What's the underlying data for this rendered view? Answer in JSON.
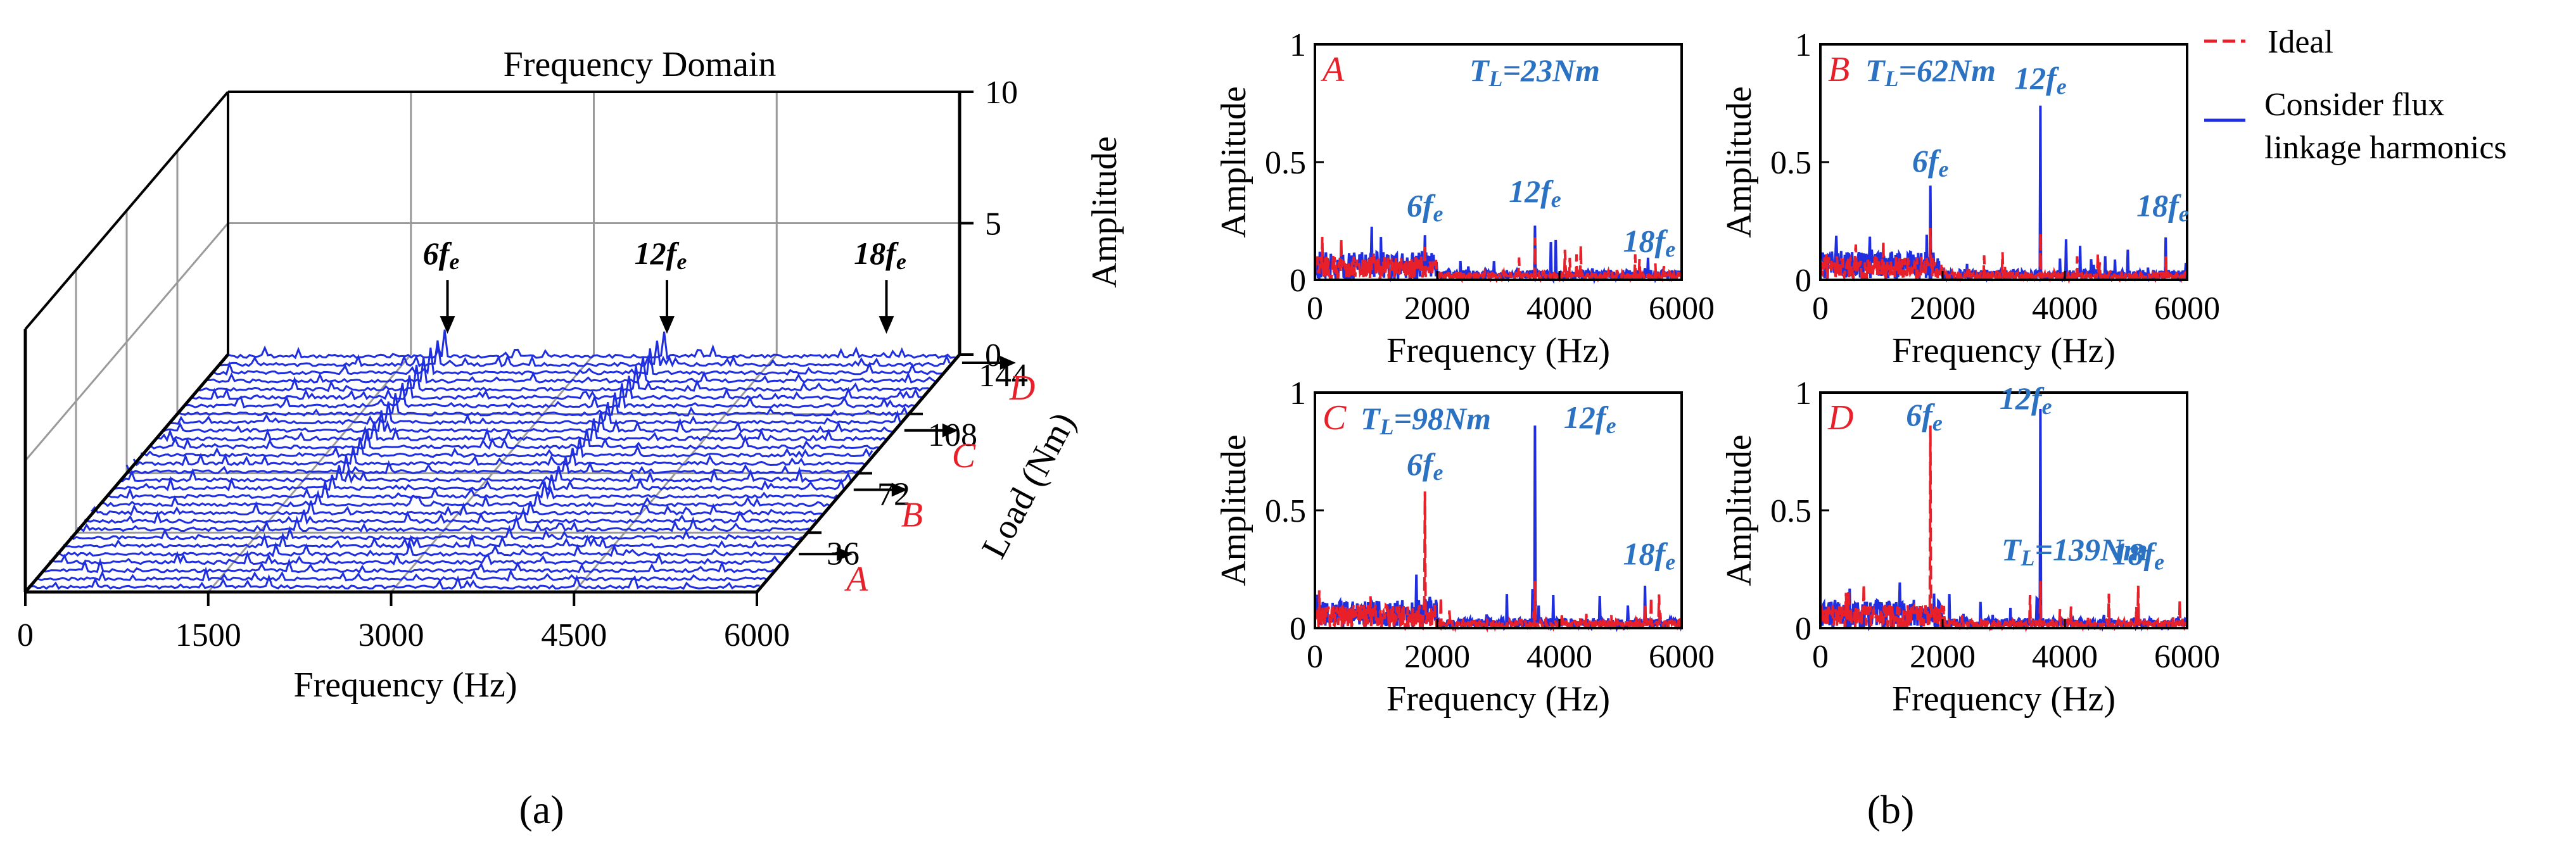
{
  "figure": {
    "caption_a": "(a)",
    "caption_b": "(b)",
    "colors": {
      "ideal": "#e8202a",
      "flux": "#1f2fe0",
      "annotation": "#2b73c2",
      "marker": "#e8202a"
    }
  },
  "chart_data": [
    {
      "type": "line",
      "panel": "a",
      "title": "Frequency Domain",
      "xlabel": "Frequency (Hz)",
      "ylabel": "Load (Nm)",
      "zlabel": "Amplitude",
      "xlim": [
        0,
        6000
      ],
      "ylim": [
        0,
        144
      ],
      "zlim": [
        0,
        10
      ],
      "xticks": [
        "0",
        "1500",
        "3000",
        "4500",
        "6000"
      ],
      "yticks": [
        "36",
        "72",
        "108",
        "144"
      ],
      "zticks": [
        "0",
        "5",
        "10"
      ],
      "load_markers": [
        {
          "label": "A",
          "load": 23
        },
        {
          "label": "B",
          "load": 62
        },
        {
          "label": "C",
          "load": 98
        },
        {
          "label": "D",
          "load": 139
        }
      ],
      "harmonic_labels": [
        {
          "text": "6fe",
          "main": "6f",
          "sub": "e",
          "x": 1800
        },
        {
          "text": "12fe",
          "main": "12f",
          "sub": "e",
          "x": 3600
        },
        {
          "text": "18fe",
          "main": "18f",
          "sub": "e",
          "x": 5400
        }
      ],
      "series_count": 29,
      "series_load_step": 5,
      "harmonic_peak_amplitude": {
        "6fe_at_max_load": 1.0,
        "12fe_at_max_load": 1.0,
        "18fe": 0.15
      },
      "grid": true
    },
    {
      "type": "line",
      "panel": "b",
      "subplots": [
        {
          "id": "A",
          "condition": "TL=23Nm",
          "cond_main": "T",
          "cond_sub": "L",
          "cond_rest": "=23Nm",
          "xlabel": "Frequency (Hz)",
          "ylabel": "Amplitude",
          "xlim": [
            0,
            6000
          ],
          "ylim": [
            0,
            1
          ],
          "xticks": [
            "0",
            "2000",
            "4000",
            "6000"
          ],
          "yticks": [
            "0",
            "0.5",
            "1"
          ],
          "peaks": {
            "ideal": [
              {
                "x": 1800,
                "y": 0.15
              },
              {
                "x": 3600,
                "y": 0.18
              }
            ],
            "flux": [
              {
                "x": 1800,
                "y": 0.19
              },
              {
                "x": 3600,
                "y": 0.23
              },
              {
                "x": 5400,
                "y": 0.05
              }
            ]
          },
          "harmonics": [
            {
              "main": "6f",
              "sub": "e"
            },
            {
              "main": "12f",
              "sub": "e"
            },
            {
              "main": "18f",
              "sub": "e"
            }
          ]
        },
        {
          "id": "B",
          "condition": "TL=62Nm",
          "cond_main": "T",
          "cond_sub": "L",
          "cond_rest": "=62Nm",
          "xlabel": "Frequency (Hz)",
          "ylabel": "Amplitude",
          "xlim": [
            0,
            6000
          ],
          "ylim": [
            0,
            1
          ],
          "xticks": [
            "0",
            "2000",
            "4000",
            "6000"
          ],
          "yticks": [
            "0",
            "0.5",
            "1"
          ],
          "peaks": {
            "ideal": [
              {
                "x": 1800,
                "y": 0.22
              },
              {
                "x": 3600,
                "y": 0.2
              },
              {
                "x": 5650,
                "y": 0.1
              }
            ],
            "flux": [
              {
                "x": 1800,
                "y": 0.4
              },
              {
                "x": 3600,
                "y": 0.74
              },
              {
                "x": 5650,
                "y": 0.18
              }
            ]
          },
          "harmonics": [
            {
              "main": "6f",
              "sub": "e"
            },
            {
              "main": "12f",
              "sub": "e"
            },
            {
              "main": "18f",
              "sub": "e"
            }
          ]
        },
        {
          "id": "C",
          "condition": "TL=98Nm",
          "cond_main": "T",
          "cond_sub": "L",
          "cond_rest": "=98Nm",
          "xlabel": "Frequency (Hz)",
          "ylabel": "Amplitude",
          "xlim": [
            0,
            6000
          ],
          "ylim": [
            0,
            1
          ],
          "xticks": [
            "0",
            "2000",
            "4000",
            "6000"
          ],
          "yticks": [
            "0",
            "0.5",
            "1"
          ],
          "peaks": {
            "ideal": [
              {
                "x": 1800,
                "y": 0.58
              },
              {
                "x": 3600,
                "y": 0.2
              },
              {
                "x": 5400,
                "y": 0.1
              }
            ],
            "flux": [
              {
                "x": 1800,
                "y": 0.12
              },
              {
                "x": 3600,
                "y": 0.86
              },
              {
                "x": 5400,
                "y": 0.18
              }
            ]
          },
          "harmonics": [
            {
              "main": "6f",
              "sub": "e"
            },
            {
              "main": "12f",
              "sub": "e"
            },
            {
              "main": "18f",
              "sub": "e"
            }
          ]
        },
        {
          "id": "D",
          "condition": "TL=139Nm",
          "cond_main": "T",
          "cond_sub": "L",
          "cond_rest": "=139Nm",
          "xlabel": "Frequency (Hz)",
          "ylabel": "Amplitude",
          "xlim": [
            0,
            6000
          ],
          "ylim": [
            0,
            1
          ],
          "xticks": [
            "0",
            "2000",
            "4000",
            "6000"
          ],
          "yticks": [
            "0",
            "0.5",
            "1"
          ],
          "peaks": {
            "ideal": [
              {
                "x": 1800,
                "y": 0.86
              },
              {
                "x": 3600,
                "y": 0.2
              },
              {
                "x": 5200,
                "y": 0.18
              }
            ],
            "flux": [
              {
                "x": 1800,
                "y": 0.1
              },
              {
                "x": 3600,
                "y": 0.93
              },
              {
                "x": 5200,
                "y": 0.05
              }
            ]
          },
          "harmonics": [
            {
              "main": "6f",
              "sub": "e"
            },
            {
              "main": "12f",
              "sub": "e"
            },
            {
              "main": "18f",
              "sub": "e"
            }
          ]
        }
      ],
      "legend": [
        {
          "name": "Ideal",
          "style": "dashed",
          "color": "#e8202a"
        },
        {
          "name": "Consider flux linkage harmonics",
          "line1": "Consider flux",
          "line2": "linkage harmonics",
          "style": "solid",
          "color": "#1f2fe0"
        }
      ]
    }
  ]
}
